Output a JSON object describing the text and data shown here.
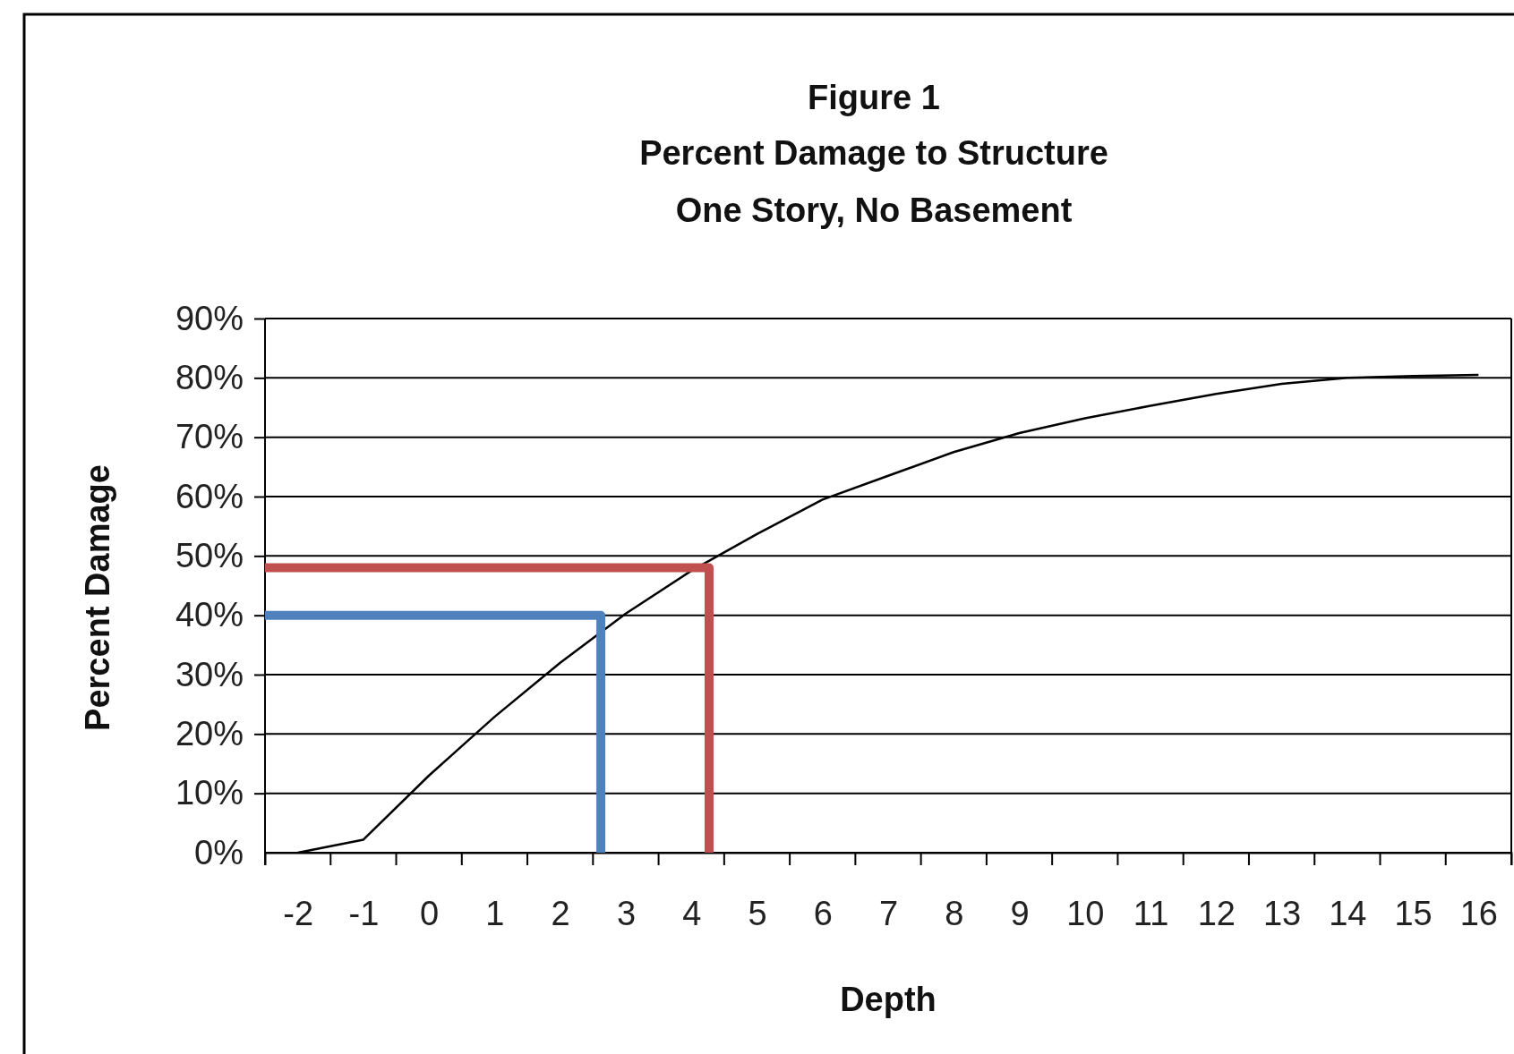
{
  "chart_data": {
    "type": "line",
    "title": "Figure 1",
    "subtitle": "Percent Damage to Structure\nOne Story, No Basement",
    "xlabel": "Depth",
    "ylabel": "Percent Damage",
    "xlim": [
      -2.5,
      16.5
    ],
    "xticks": [
      -2,
      -1,
      0,
      1,
      2,
      3,
      4,
      5,
      6,
      7,
      8,
      9,
      10,
      11,
      12,
      13,
      14,
      15,
      16
    ],
    "ylim": [
      0,
      90
    ],
    "yticks": [
      {
        "value": 0,
        "label": "0%"
      },
      {
        "value": 10,
        "label": "10%"
      },
      {
        "value": 20,
        "label": "20%"
      },
      {
        "value": 30,
        "label": "30%"
      },
      {
        "value": 40,
        "label": "40%"
      },
      {
        "value": 50,
        "label": "50%"
      },
      {
        "value": 60,
        "label": "60%"
      },
      {
        "value": 70,
        "label": "70%"
      },
      {
        "value": 80,
        "label": "80%"
      },
      {
        "value": 90,
        "label": "90%"
      }
    ],
    "grid": "y",
    "marker": "none",
    "line_style": "solid",
    "series": [
      {
        "color": "#000000",
        "x": [
          -2,
          -1,
          0,
          1,
          2,
          3,
          4,
          5,
          6,
          7,
          8,
          9,
          10,
          11,
          12,
          13,
          14,
          15,
          16
        ],
        "values": [
          0,
          2.2,
          13,
          22.9,
          32,
          40.3,
          47.5,
          53.7,
          59.5,
          63.5,
          67.5,
          70.7,
          73.2,
          75.3,
          77.3,
          79,
          80,
          80.3,
          80.5
        ]
      },
      {
        "color": "#4f81bd",
        "x": [
          -2.5,
          2.62,
          2.62
        ],
        "values": [
          40,
          40,
          0
        ]
      },
      {
        "color": "#c0504d",
        "x": [
          -2.5,
          4.27,
          4.27
        ],
        "values": [
          48,
          48,
          0
        ]
      }
    ]
  }
}
